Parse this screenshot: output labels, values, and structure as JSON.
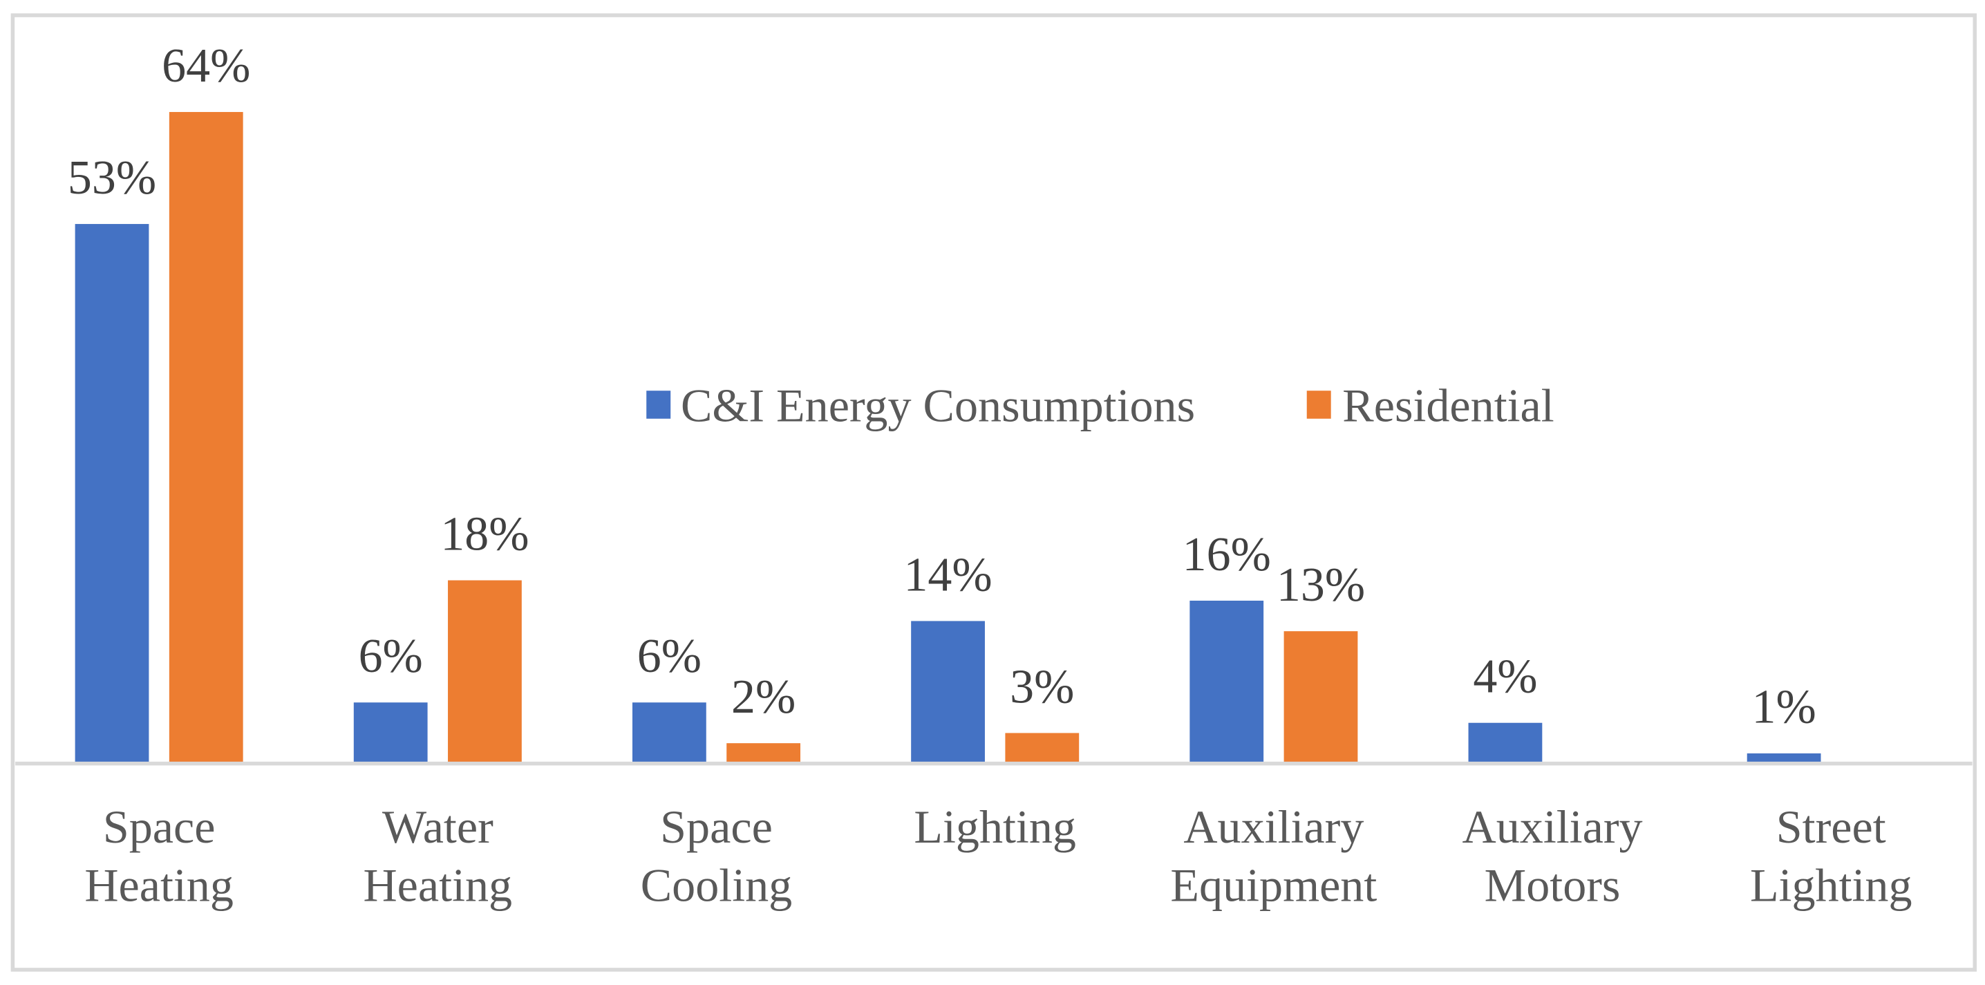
{
  "colors": {
    "series1": "#4472C4",
    "series2": "#ED7D31",
    "axis": "#D9D9D9",
    "border": "#D9D9D9"
  },
  "chart_data": {
    "type": "bar",
    "title": "",
    "xlabel": "",
    "ylabel": "",
    "ylim": [
      0,
      70
    ],
    "grid": false,
    "legend_position": "center",
    "categories": [
      [
        "Space",
        "Heating"
      ],
      [
        "Water",
        "Heating"
      ],
      [
        "Space",
        "Cooling"
      ],
      [
        "Lighting"
      ],
      [
        "Auxiliary",
        "Equipment"
      ],
      [
        "Auxiliary",
        "Motors"
      ],
      [
        "Street",
        "Lighting"
      ]
    ],
    "series": [
      {
        "name": "C&I Energy Consumptions",
        "values": [
          53,
          6,
          6,
          14,
          16,
          4,
          1
        ],
        "labels": [
          "53%",
          "6%",
          "6%",
          "14%",
          "16%",
          "4%",
          "1%"
        ]
      },
      {
        "name": "Residential",
        "values": [
          64,
          18,
          2,
          3,
          13,
          null,
          null
        ],
        "labels": [
          "64%",
          "18%",
          "2%",
          "3%",
          "13%",
          null,
          null
        ]
      }
    ]
  }
}
